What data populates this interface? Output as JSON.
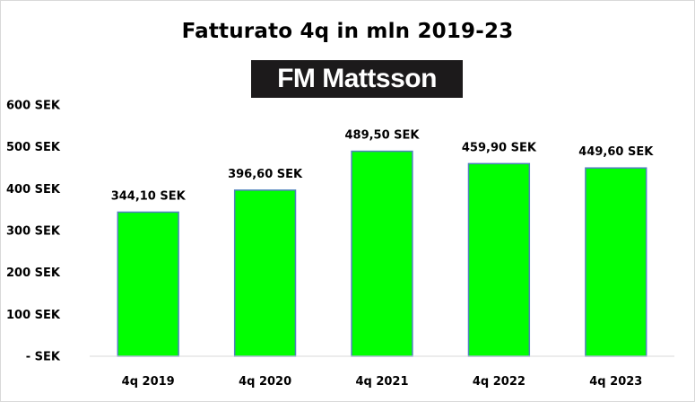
{
  "chart_data": {
    "type": "bar",
    "title": "Fatturato  4q in mln 2019-23",
    "logo_text": "FM Mattsson",
    "categories": [
      "4q 2019",
      "4q 2020",
      "4q 2021",
      "4q 2022",
      "4q 2023"
    ],
    "values": [
      344.1,
      396.6,
      489.5,
      459.9,
      449.6
    ],
    "data_labels": [
      "344,10 SEK",
      "396,60 SEK",
      "489,50 SEK",
      "459,90 SEK",
      "449,60 SEK"
    ],
    "y_ticks": [
      0,
      100,
      200,
      300,
      400,
      500,
      600
    ],
    "y_tick_labels": [
      "- SEK",
      "100 SEK",
      "200 SEK",
      "300 SEK",
      "400 SEK",
      "500 SEK",
      "600 SEK"
    ],
    "xlabel": "",
    "ylabel": "",
    "ylim": [
      0,
      600
    ],
    "grid": false,
    "legend": "none",
    "bar_color": "#00ff00",
    "bar_edge_color": "#4f81bd"
  }
}
